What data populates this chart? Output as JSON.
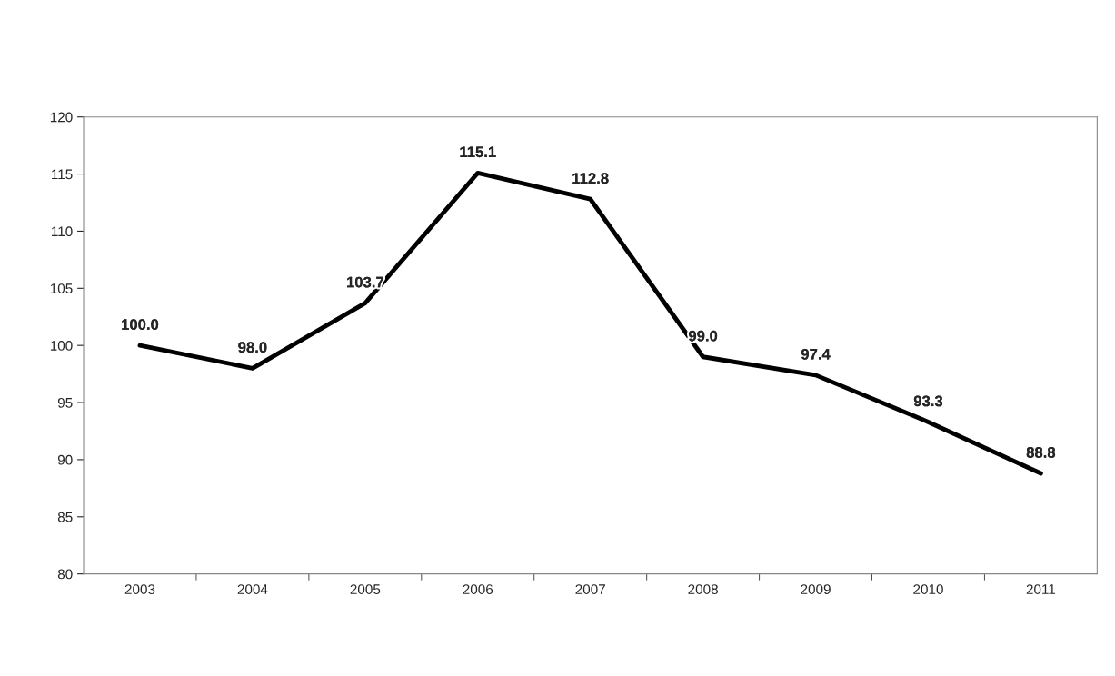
{
  "chart_data": {
    "type": "line",
    "categories": [
      "2003",
      "2004",
      "2005",
      "2006",
      "2007",
      "2008",
      "2009",
      "2010",
      "2011"
    ],
    "series": [
      {
        "color": "#000000",
        "values": [
          100.0,
          98.0,
          103.7,
          115.1,
          112.8,
          99.0,
          97.4,
          93.3,
          88.8
        ],
        "value_labels": [
          "100.0",
          "98.0",
          "103.7",
          "115.1",
          "112.8",
          "99.0",
          "97.4",
          "93.3",
          "88.8"
        ]
      }
    ],
    "ylim": [
      80,
      120
    ],
    "yticks": [
      80,
      85,
      90,
      95,
      100,
      105,
      110,
      115,
      120
    ],
    "grid": false,
    "legend": false,
    "marker": "none",
    "line_style": "solid"
  }
}
